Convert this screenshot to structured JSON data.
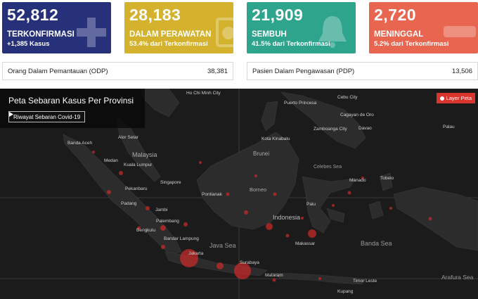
{
  "cards": [
    {
      "number": "52,812",
      "label": "TERKONFIRMASI",
      "sub": "+1,385 Kasus",
      "icon": "plus-icon",
      "color": "#27317a"
    },
    {
      "number": "28,183",
      "label": "DALAM PERAWATAN",
      "sub": "53.4% dari Terkonfirmasi",
      "icon": "hospital-icon",
      "color": "#d4b22e"
    },
    {
      "number": "21,909",
      "label": "SEMBUH",
      "sub": "41.5% dari Terkonfirmasi",
      "icon": "bell-icon",
      "color": "#2ea48c"
    },
    {
      "number": "2,720",
      "label": "MENINGGAL",
      "sub": "5.2% dari Terkonfirmasi",
      "icon": "minus-icon",
      "color": "#e8654f"
    }
  ],
  "stats": [
    {
      "label": "Orang Dalam Pemantauan (ODP)",
      "value": "38,381"
    },
    {
      "label": "Pasien Dalam Pengawasan (PDP)",
      "value": "13,506"
    }
  ],
  "map": {
    "title": "Peta Sebaran Kasus Per Provinsi",
    "history_button": "Riwayat Sebaran Covid-19",
    "layer_button": "Layer Peta",
    "places": [
      "Ho Chi Minh City",
      "Puerto Princesa",
      "Cebu City",
      "Cagayan de Oro",
      "Zamboanga City",
      "Davao",
      "Palau",
      "Banda Aceh",
      "Alor Setar",
      "Malaysia",
      "Medan",
      "Kuala Lumpur",
      "Singapore",
      "Kota Kinabalu",
      "Brunei",
      "Celebes Sea",
      "Manado",
      "Tobelo",
      "Pekanbaru",
      "Pontianak",
      "Borneo",
      "Padang",
      "Jambi",
      "Palu",
      "Palembang",
      "Indonesia",
      "Bengkulu",
      "Bandar Lampung",
      "Java Sea",
      "Makassar",
      "Banda Sea",
      "Jakarta",
      "Surabaya",
      "Mataram",
      "Timor Leste",
      "Arafura Sea",
      "Kupang"
    ]
  }
}
